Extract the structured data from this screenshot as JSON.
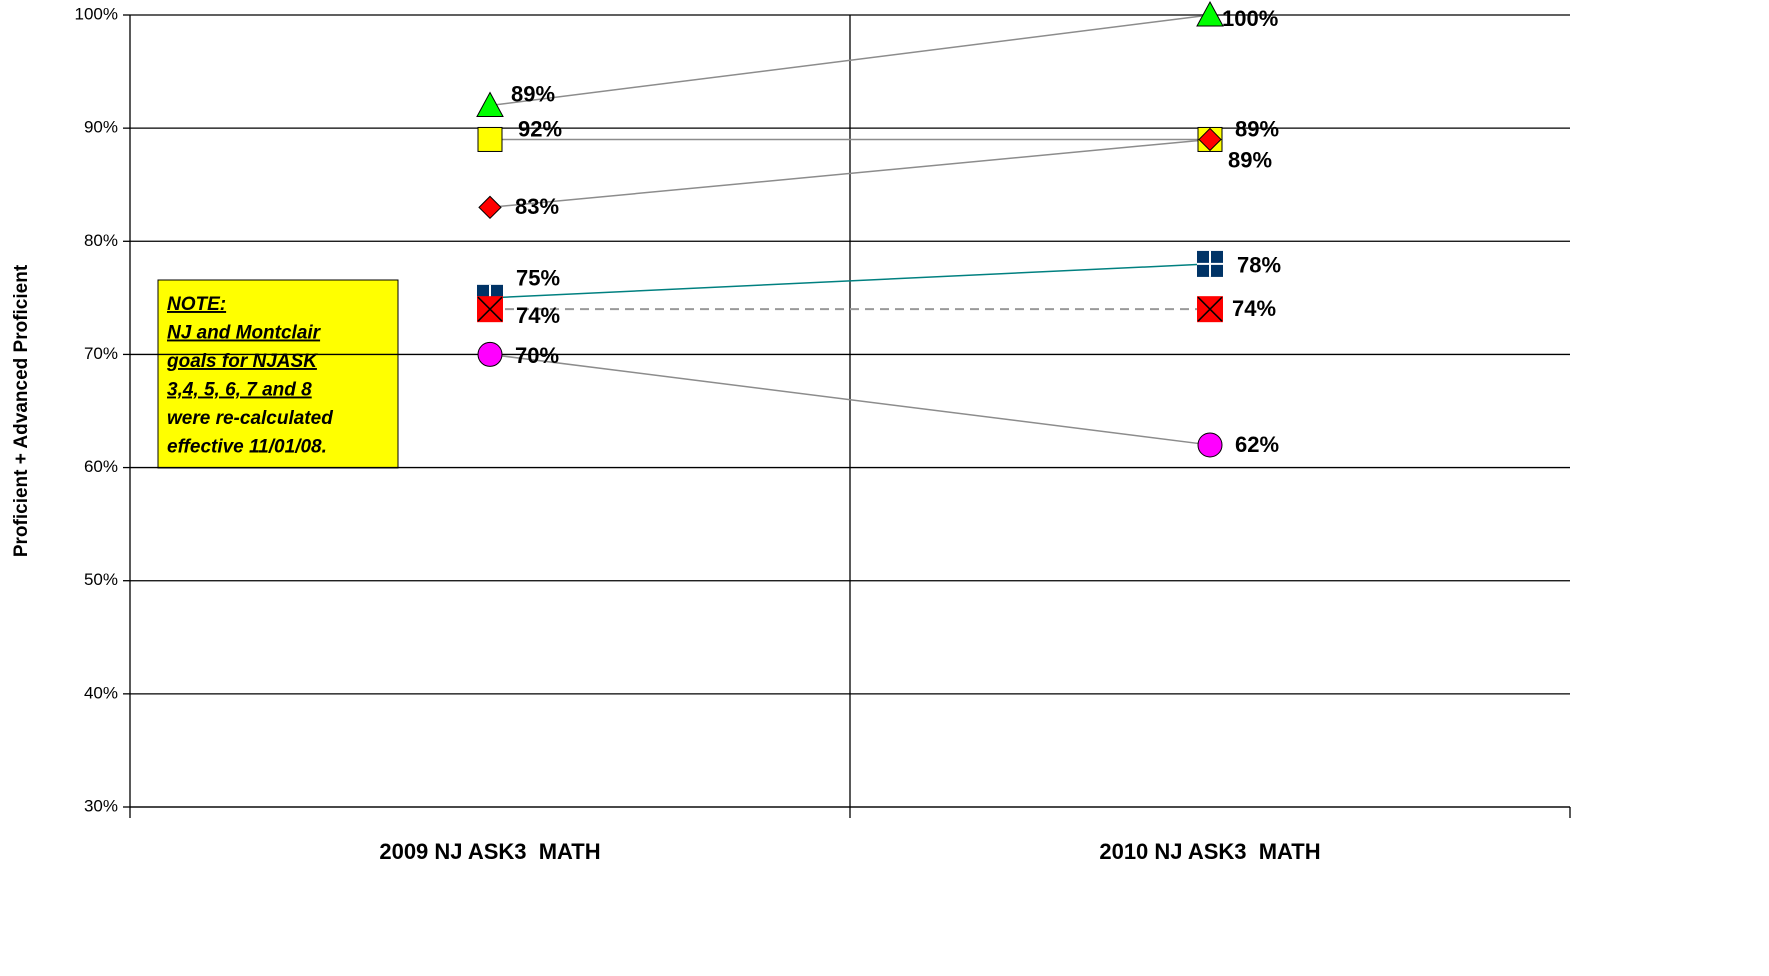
{
  "chart_data": {
    "type": "line",
    "y_label": "Proficient + Advanced Proficient",
    "categories": [
      "2009 NJ ASK3  MATH",
      "2010 NJ ASK3  MATH"
    ],
    "ylim": [
      30,
      100
    ],
    "yticks": [
      {
        "value": 30,
        "label": "30%"
      },
      {
        "value": 40,
        "label": "40%"
      },
      {
        "value": 50,
        "label": "50%"
      },
      {
        "value": 60,
        "label": "60%"
      },
      {
        "value": 70,
        "label": "70%"
      },
      {
        "value": 80,
        "label": "80%"
      },
      {
        "value": 90,
        "label": "90%"
      },
      {
        "value": 100,
        "label": "100%"
      }
    ],
    "grid": true,
    "note": [
      "NOTE:",
      "NJ and Montclair",
      "goals for NJASK",
      "3,4, 5, 6, 7 and 8",
      "were re-calculated",
      "effective 11/01/08."
    ],
    "series": [
      {
        "marker": "triangle",
        "color": "#00ff00",
        "line_color": "#8c8c8c",
        "values": [
          92,
          100
        ],
        "value_labels": [
          "92%",
          "100%"
        ]
      },
      {
        "marker": "square",
        "color": "#ffff00",
        "line_color": "#8c8c8c",
        "values": [
          89,
          89
        ],
        "value_labels": [
          "89%",
          "89%"
        ]
      },
      {
        "marker": "diamond",
        "color": "#ff0000",
        "line_color": "#8c8c8c",
        "values": [
          83,
          89
        ],
        "value_labels": [
          "83%",
          "89%"
        ]
      },
      {
        "marker": "cross-square",
        "color": "#003366",
        "line_color": "#008080",
        "values": [
          75,
          78
        ],
        "value_labels": [
          "75%",
          "78%"
        ]
      },
      {
        "marker": "x-square",
        "color": "#ff0000",
        "line_color": "#999999",
        "dashed": true,
        "values": [
          74,
          74
        ],
        "value_labels": [
          "74%",
          "74%"
        ]
      },
      {
        "marker": "circle",
        "color": "#ff00ff",
        "line_color": "#8c8c8c",
        "values": [
          70,
          62
        ],
        "value_labels": [
          "70%",
          "62%"
        ]
      }
    ]
  }
}
